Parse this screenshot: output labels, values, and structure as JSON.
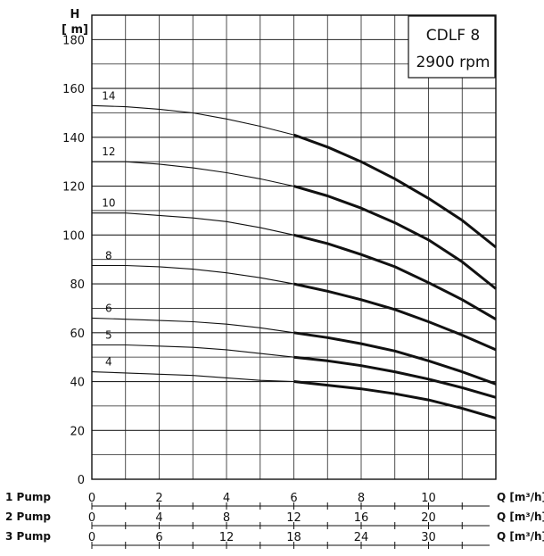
{
  "chart_data": {
    "type": "line",
    "title": "CDLF 8",
    "subtitle": "2900 rpm",
    "ylabel": "H",
    "yunit": "[ m]",
    "ylim": [
      0,
      190
    ],
    "xlim": [
      0,
      12
    ],
    "yticks": [
      0,
      20,
      40,
      60,
      80,
      100,
      120,
      140,
      160,
      180
    ],
    "grid": true,
    "x_axes": [
      {
        "label": "1 Pump",
        "unit": "Q [m³/h]",
        "ticks": [
          0,
          2,
          4,
          6,
          8,
          10
        ]
      },
      {
        "label": "2 Pump",
        "unit": "Q [m³/h]",
        "ticks": [
          0,
          4,
          8,
          12,
          16,
          20
        ]
      },
      {
        "label": "3 Pump",
        "unit": "Q [m³/h]",
        "ticks": [
          0,
          6,
          12,
          18,
          24,
          30
        ]
      }
    ],
    "bold_from_x": 6,
    "series": [
      {
        "name": "14",
        "x": [
          0,
          1,
          2,
          3,
          4,
          5,
          6,
          7,
          8,
          9,
          10,
          11,
          12
        ],
        "y": [
          153,
          152.5,
          151.5,
          150,
          147.5,
          144.5,
          141,
          136,
          130,
          123,
          115,
          106,
          95
        ]
      },
      {
        "name": "12",
        "x": [
          0,
          1,
          2,
          3,
          4,
          5,
          6,
          7,
          8,
          9,
          10,
          11,
          12
        ],
        "y": [
          130,
          130,
          129,
          127.5,
          125.5,
          123,
          120,
          116,
          111,
          105,
          98,
          89,
          78
        ]
      },
      {
        "name": "10",
        "x": [
          0,
          1,
          2,
          3,
          4,
          5,
          6,
          7,
          8,
          9,
          10,
          11,
          12
        ],
        "y": [
          109,
          109,
          108,
          107,
          105.5,
          103,
          100,
          96.5,
          92,
          87,
          80.5,
          73.5,
          65.5
        ]
      },
      {
        "name": "8",
        "x": [
          0,
          1,
          2,
          3,
          4,
          5,
          6,
          7,
          8,
          9,
          10,
          11,
          12
        ],
        "y": [
          87.5,
          87.5,
          87,
          86,
          84.5,
          82.5,
          80,
          77,
          73.5,
          69.5,
          64.5,
          59,
          53
        ]
      },
      {
        "name": "6",
        "x": [
          0,
          1,
          2,
          3,
          4,
          5,
          6,
          7,
          8,
          9,
          10,
          11,
          12
        ],
        "y": [
          66,
          65.5,
          65,
          64.5,
          63.5,
          62,
          60,
          58,
          55.5,
          52.5,
          48.5,
          44,
          39
        ]
      },
      {
        "name": "5",
        "x": [
          0,
          1,
          2,
          3,
          4,
          5,
          6,
          7,
          8,
          9,
          10,
          11,
          12
        ],
        "y": [
          55,
          55,
          54.5,
          54,
          53,
          51.5,
          50,
          48.5,
          46.5,
          44,
          41,
          37.5,
          33.5
        ]
      },
      {
        "name": "4",
        "x": [
          0,
          1,
          2,
          3,
          4,
          5,
          6,
          7,
          8,
          9,
          10,
          11,
          12
        ],
        "y": [
          44,
          43.5,
          43,
          42.5,
          41.5,
          40.5,
          40,
          38.5,
          37,
          35,
          32.5,
          29,
          25
        ]
      }
    ]
  }
}
